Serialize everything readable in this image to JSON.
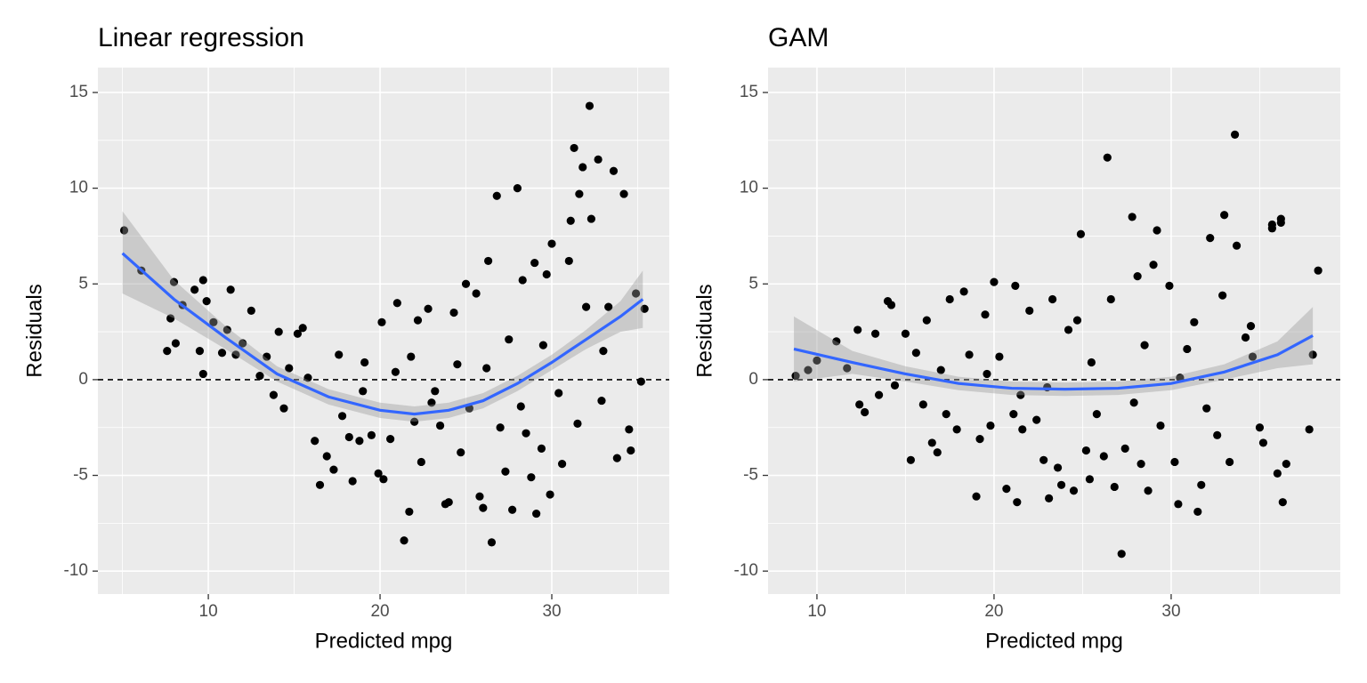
{
  "chart_data": [
    {
      "type": "scatter",
      "title": "Linear regression",
      "xlabel": "Predicted mpg",
      "ylabel": "Residuals",
      "color": "#000000",
      "x": [
        5.1,
        6.1,
        7.6,
        8,
        7.8,
        8.1,
        8.5,
        9.2,
        9.5,
        9.7,
        9.7,
        9.9,
        10.3,
        10.8,
        11.3,
        11.1,
        11.6,
        12,
        12.5,
        13,
        13.4,
        13.8,
        14.1,
        14.4,
        14.7,
        15.2,
        15.5,
        15.8,
        16.2,
        16.5,
        16.9,
        17.3,
        17.6,
        17.8,
        18.2,
        18.4,
        18.8,
        19.1,
        19.5,
        19.9,
        20.1,
        20.2,
        20.6,
        20.9,
        21,
        21.4,
        21.7,
        21.8,
        22.2,
        22.4,
        22.8,
        23.2,
        23.5,
        23.8,
        24,
        24.3,
        24.7,
        25,
        25.2,
        25.6,
        25.8,
        26,
        26.3,
        26.5,
        26.8,
        27,
        27.3,
        27.7,
        28,
        28.3,
        28.5,
        28.8,
        29,
        29.1,
        29.4,
        29.7,
        29.9,
        30,
        30.4,
        30.6,
        31,
        31.3,
        31.6,
        31.8,
        32,
        32.2,
        32.3,
        32.7,
        32.9,
        33.3,
        33.6,
        33.8,
        34.2,
        34.5,
        34.6,
        34.9,
        35.2,
        35.4,
        31.1,
        26.2,
        23,
        27.5,
        29.5,
        31.5,
        33,
        22,
        19,
        24.5,
        28.2
      ],
      "y": [
        7.8,
        5.7,
        1.5,
        5.1,
        3.2,
        1.9,
        3.9,
        4.7,
        1.5,
        5.2,
        0.3,
        4.1,
        3,
        1.4,
        4.7,
        2.6,
        1.3,
        1.9,
        3.6,
        0.2,
        1.2,
        -0.8,
        2.5,
        -1.5,
        0.6,
        2.4,
        2.7,
        0.1,
        -3.2,
        -5.5,
        -4,
        -4.7,
        1.3,
        -1.9,
        -3,
        -5.3,
        -3.2,
        0.9,
        -2.9,
        -4.9,
        3,
        -5.2,
        -3.1,
        0.4,
        4,
        -8.4,
        -6.9,
        1.2,
        3.1,
        -4.3,
        3.7,
        -0.6,
        -2.4,
        -6.5,
        -6.4,
        3.5,
        -3.8,
        5,
        -1.5,
        4.5,
        -6.1,
        -6.7,
        6.2,
        -8.5,
        9.6,
        -2.5,
        -4.8,
        -6.8,
        10,
        5.2,
        -2.8,
        -5.1,
        6.1,
        -7,
        -3.6,
        5.5,
        -6,
        7.1,
        -0.7,
        -4.4,
        6.2,
        12.1,
        9.7,
        11.1,
        3.8,
        14.3,
        8.4,
        11.5,
        -1.1,
        3.8,
        10.9,
        -4.1,
        9.7,
        -2.6,
        -3.7,
        4.5,
        -0.1,
        3.7,
        8.3,
        0.6,
        -1.2,
        2.1,
        1.8,
        -2.3,
        1.5,
        -2.2,
        -0.6,
        0.8,
        -1.4
      ],
      "smooth": {
        "color": "#3366ff",
        "x": [
          5,
          8,
          11,
          14,
          17,
          20,
          22,
          24,
          26,
          28,
          30,
          32,
          34,
          35.3
        ],
        "y": [
          6.6,
          4.2,
          2.2,
          0.3,
          -0.9,
          -1.6,
          -1.8,
          -1.6,
          -1.1,
          -0.2,
          0.9,
          2.1,
          3.3,
          4.2
        ],
        "lower": [
          4.5,
          3.2,
          1.6,
          -0.1,
          -1.3,
          -2,
          -2.2,
          -2,
          -1.5,
          -0.6,
          0.5,
          1.6,
          2.5,
          2.7
        ],
        "upper": [
          8.8,
          5.2,
          2.8,
          0.7,
          -0.5,
          -1.2,
          -1.4,
          -1.2,
          -0.7,
          0.2,
          1.3,
          2.6,
          4.1,
          5.7
        ]
      },
      "reference_line": 0,
      "grid": true,
      "xlim": [
        3.57,
        36.84
      ],
      "ylim": [
        -11.2,
        16.3
      ],
      "xticks": [
        10,
        20,
        30
      ],
      "yticks": [
        -10,
        -5,
        0,
        5,
        10,
        15
      ],
      "xminor": [
        5,
        15,
        25,
        35
      ],
      "yminor": [
        -7.5,
        -2.5,
        2.5,
        7.5,
        12.5
      ]
    },
    {
      "type": "scatter",
      "title": "GAM",
      "xlabel": "Predicted mpg",
      "ylabel": "Residuals",
      "color": "#000000",
      "x": [
        8.8,
        9.5,
        10,
        11.1,
        11.7,
        12.3,
        12.4,
        12.7,
        13.3,
        13.5,
        14,
        14.2,
        14.4,
        15,
        15.3,
        15.6,
        16,
        16.2,
        16.5,
        16.8,
        17.3,
        17.5,
        17.9,
        18.3,
        18.6,
        19,
        19.2,
        19.5,
        19.8,
        20,
        20.3,
        20.7,
        21.1,
        21.2,
        21.3,
        21.6,
        22,
        22.4,
        22.8,
        23.1,
        23.3,
        23.6,
        23.8,
        24.2,
        24.5,
        24.7,
        24.9,
        25.2,
        25.4,
        25.8,
        26.2,
        26.4,
        26.6,
        26.8,
        27.2,
        27.4,
        27.8,
        28.1,
        28.3,
        28.7,
        29,
        29.2,
        29.4,
        29.9,
        30.2,
        30.4,
        30.9,
        31.3,
        31.5,
        31.7,
        32.2,
        32.6,
        32.9,
        33,
        33.3,
        33.6,
        33.7,
        34.2,
        34.6,
        35,
        35.2,
        35.7,
        35.7,
        36,
        36.2,
        36.2,
        36.3,
        36.5,
        37.8,
        38,
        38.3,
        21.5,
        19.6,
        25.5,
        27.9,
        30.5,
        17,
        23,
        28.5,
        32,
        34.5
      ],
      "y": [
        0.2,
        0.5,
        1,
        2,
        0.6,
        2.6,
        -1.3,
        -1.7,
        2.4,
        -0.8,
        4.1,
        3.9,
        -0.3,
        2.4,
        -4.2,
        1.4,
        -1.3,
        3.1,
        -3.3,
        -3.8,
        -1.8,
        4.2,
        -2.6,
        4.6,
        1.3,
        -6.1,
        -3.1,
        3.4,
        -2.4,
        5.1,
        1.2,
        -5.7,
        -1.8,
        4.9,
        -6.4,
        -2.6,
        3.6,
        -2.1,
        -4.2,
        -6.2,
        4.2,
        -4.6,
        -5.5,
        2.6,
        -5.8,
        3.1,
        7.6,
        -3.7,
        -5.2,
        -1.8,
        -4,
        11.6,
        4.2,
        -5.6,
        -9.1,
        -3.6,
        8.5,
        5.4,
        -4.4,
        -5.8,
        6,
        7.8,
        -2.4,
        4.9,
        -4.3,
        -6.5,
        1.6,
        3,
        -6.9,
        -5.5,
        7.4,
        -2.9,
        4.4,
        8.6,
        -4.3,
        12.8,
        7,
        2.2,
        1.2,
        -2.5,
        -3.3,
        8.1,
        7.9,
        -4.9,
        8.4,
        8.2,
        -6.4,
        -4.4,
        -2.6,
        1.3,
        5.7,
        -0.8,
        0.3,
        0.9,
        -1.2,
        0.1,
        0.5,
        -0.4,
        1.8,
        -1.5,
        2.8
      ],
      "smooth": {
        "color": "#3366ff",
        "x": [
          8.7,
          12,
          15,
          18,
          21,
          24,
          27,
          30,
          33,
          36,
          38
        ],
        "y": [
          1.6,
          0.9,
          0.3,
          -0.2,
          -0.45,
          -0.5,
          -0.45,
          -0.2,
          0.4,
          1.3,
          2.3
        ],
        "lower": [
          -0.1,
          0.3,
          -0.1,
          -0.55,
          -0.8,
          -0.85,
          -0.8,
          -0.55,
          0,
          0.6,
          0.8
        ],
        "upper": [
          3.3,
          1.5,
          0.7,
          0.15,
          -0.1,
          -0.15,
          -0.1,
          0.15,
          0.8,
          2,
          3.8
        ]
      },
      "reference_line": 0,
      "grid": true,
      "xlim": [
        7.24,
        39.55
      ],
      "ylim": [
        -11.2,
        16.3
      ],
      "xticks": [
        10,
        20,
        30
      ],
      "yticks": [
        -10,
        -5,
        0,
        5,
        10,
        15
      ],
      "xminor": [
        15,
        25,
        35
      ],
      "yminor": [
        -7.5,
        -2.5,
        2.5,
        7.5,
        12.5
      ]
    }
  ]
}
